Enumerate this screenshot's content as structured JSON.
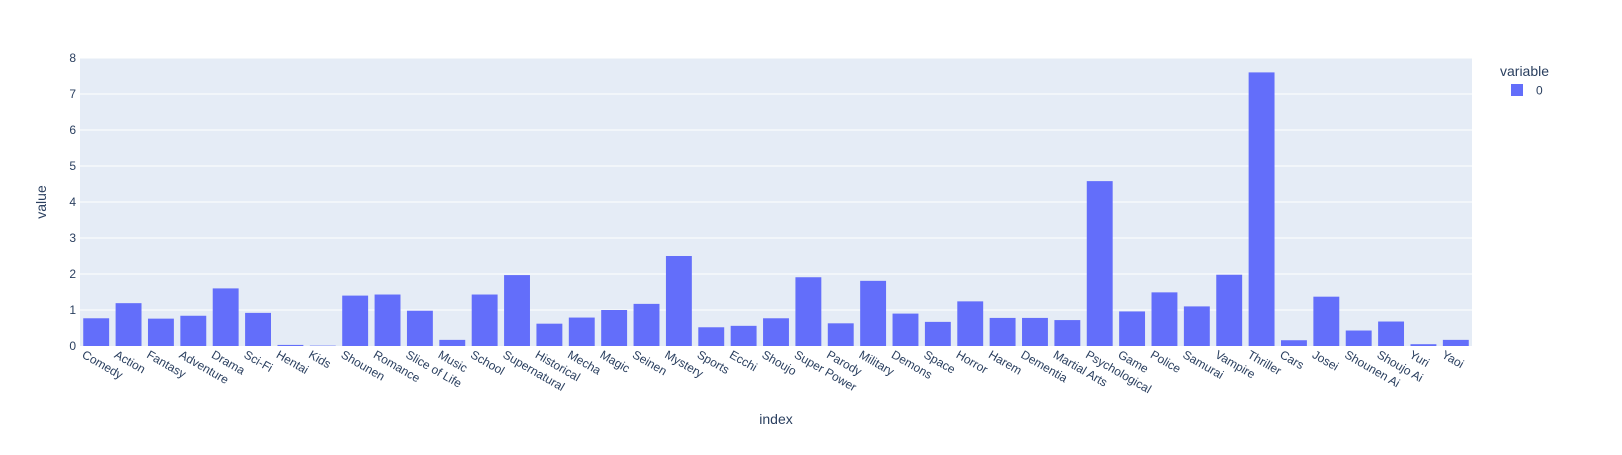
{
  "chart_data": {
    "type": "bar",
    "xlabel": "index",
    "ylabel": "value",
    "ylim": [
      0,
      8
    ],
    "yticks": [
      0,
      1,
      2,
      3,
      4,
      5,
      6,
      7,
      8
    ],
    "grid": true,
    "legend": {
      "title": "variable",
      "placement": "top-right",
      "entries": [
        "0"
      ]
    },
    "categories": [
      "Comedy",
      "Action",
      "Fantasy",
      "Adventure",
      "Drama",
      "Sci-Fi",
      "Hentai",
      "Kids",
      "Shounen",
      "Romance",
      "Slice of Life",
      "Music",
      "School",
      "Supernatural",
      "Historical",
      "Mecha",
      "Magic",
      "Seinen",
      "Mystery",
      "Sports",
      "Ecchi",
      "Shoujo",
      "Super Power",
      "Parody",
      "Military",
      "Demons",
      "Space",
      "Horror",
      "Harem",
      "Dementia",
      "Martial Arts",
      "Psychological",
      "Game",
      "Police",
      "Samurai",
      "Vampire",
      "Thriller",
      "Cars",
      "Josei",
      "Shounen Ai",
      "Shoujo Ai",
      "Yuri",
      "Yaoi"
    ],
    "series": [
      {
        "name": "0",
        "color": "#636efa",
        "values": [
          0.77,
          1.19,
          0.76,
          0.84,
          1.6,
          0.92,
          0.03,
          0.01,
          1.4,
          1.43,
          0.98,
          0.17,
          1.43,
          1.97,
          0.62,
          0.79,
          1.0,
          1.17,
          2.5,
          0.52,
          0.56,
          0.77,
          1.91,
          0.63,
          1.81,
          0.9,
          0.67,
          1.24,
          0.78,
          0.78,
          0.72,
          4.58,
          0.96,
          1.49,
          1.1,
          1.98,
          7.6,
          0.16,
          1.37,
          0.43,
          0.68,
          0.05,
          0.17
        ]
      }
    ]
  },
  "colors": {
    "plot_bg": "#e5ecf6",
    "grid": "#ffffff",
    "text": "#2a3f5f",
    "bar": "#636efa"
  }
}
